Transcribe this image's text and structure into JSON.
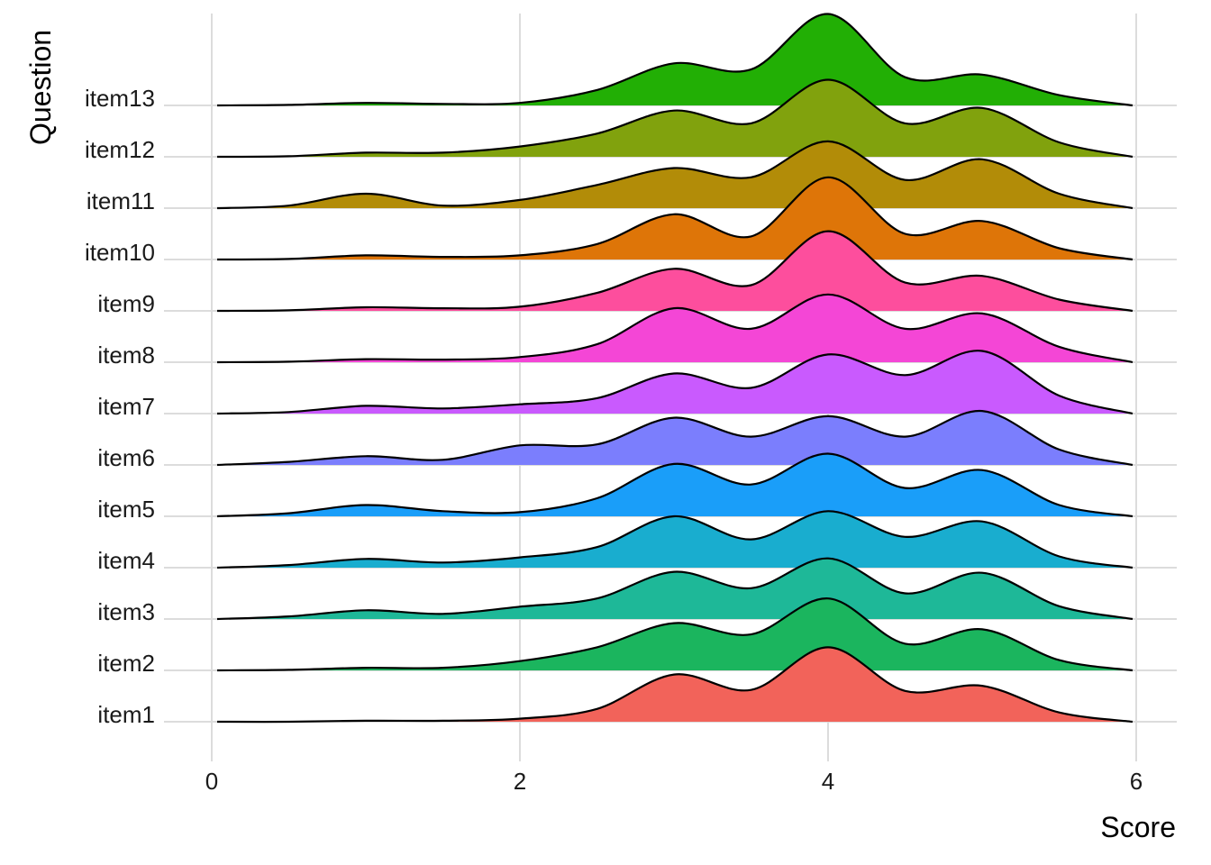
{
  "chart_data": {
    "type": "ridgeline",
    "title": "",
    "xlabel": "Score",
    "ylabel": "Question",
    "xlim": [
      0,
      6
    ],
    "x_ticks": [
      0,
      2,
      4,
      6
    ],
    "grid": true,
    "legend": "none",
    "density_grid_x": [
      0,
      0.5,
      1,
      1.5,
      2,
      2.5,
      3,
      3.5,
      4,
      4.5,
      5,
      5.5,
      6
    ],
    "series": [
      {
        "name": "item1",
        "color": "#F2635A",
        "density": [
          0.0,
          0.0,
          0.02,
          0.02,
          0.06,
          0.25,
          0.92,
          0.62,
          1.45,
          0.6,
          0.7,
          0.18,
          0.0
        ]
      },
      {
        "name": "item2",
        "color": "#1BB55E",
        "density": [
          0.0,
          0.01,
          0.05,
          0.05,
          0.18,
          0.45,
          0.92,
          0.7,
          1.4,
          0.52,
          0.8,
          0.2,
          0.0
        ]
      },
      {
        "name": "item3",
        "color": "#1EB898",
        "density": [
          0.0,
          0.05,
          0.17,
          0.1,
          0.24,
          0.4,
          0.92,
          0.6,
          1.18,
          0.5,
          0.9,
          0.25,
          0.0
        ]
      },
      {
        "name": "item4",
        "color": "#19ADCF",
        "density": [
          0.0,
          0.05,
          0.17,
          0.1,
          0.2,
          0.4,
          1.0,
          0.55,
          1.1,
          0.6,
          0.9,
          0.22,
          0.0
        ]
      },
      {
        "name": "item5",
        "color": "#1A9EF9",
        "density": [
          0.0,
          0.06,
          0.22,
          0.1,
          0.08,
          0.35,
          1.02,
          0.62,
          1.22,
          0.55,
          0.9,
          0.22,
          0.0
        ]
      },
      {
        "name": "item6",
        "color": "#7B7EFD",
        "density": [
          0.0,
          0.06,
          0.17,
          0.1,
          0.38,
          0.4,
          0.92,
          0.55,
          0.95,
          0.55,
          1.05,
          0.3,
          0.0
        ]
      },
      {
        "name": "item7",
        "color": "#C95AFE",
        "density": [
          0.0,
          0.03,
          0.15,
          0.1,
          0.18,
          0.3,
          0.78,
          0.5,
          1.15,
          0.75,
          1.22,
          0.35,
          0.0
        ]
      },
      {
        "name": "item8",
        "color": "#F446D6",
        "density": [
          0.0,
          0.01,
          0.06,
          0.05,
          0.1,
          0.35,
          1.05,
          0.65,
          1.32,
          0.65,
          0.95,
          0.3,
          0.0
        ]
      },
      {
        "name": "item9",
        "color": "#FD4E9D",
        "density": [
          0.0,
          0.01,
          0.07,
          0.05,
          0.08,
          0.35,
          0.82,
          0.5,
          1.55,
          0.55,
          0.68,
          0.22,
          0.0
        ]
      },
      {
        "name": "item10",
        "color": "#DE7508",
        "density": [
          0.0,
          0.01,
          0.08,
          0.05,
          0.08,
          0.3,
          0.88,
          0.45,
          1.6,
          0.5,
          0.75,
          0.22,
          0.0
        ]
      },
      {
        "name": "item11",
        "color": "#B28C08",
        "density": [
          0.0,
          0.05,
          0.28,
          0.05,
          0.16,
          0.45,
          0.78,
          0.6,
          1.3,
          0.55,
          0.95,
          0.28,
          0.0
        ]
      },
      {
        "name": "item12",
        "color": "#81A20D",
        "density": [
          0.0,
          0.01,
          0.08,
          0.08,
          0.2,
          0.45,
          0.9,
          0.65,
          1.5,
          0.65,
          0.95,
          0.28,
          0.0
        ]
      },
      {
        "name": "item13",
        "color": "#22AF05",
        "density": [
          0.0,
          0.01,
          0.05,
          0.03,
          0.05,
          0.3,
          0.82,
          0.7,
          1.78,
          0.55,
          0.6,
          0.2,
          0.0
        ]
      }
    ]
  }
}
